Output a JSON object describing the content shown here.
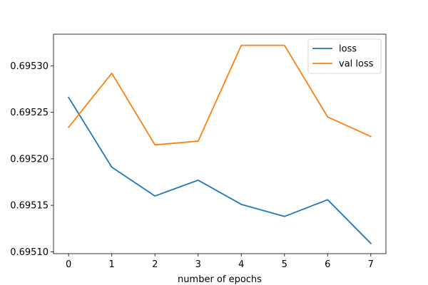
{
  "chart_data": {
    "type": "line",
    "title": "",
    "xlabel": "number of epochs",
    "ylabel": "",
    "x": [
      0,
      1,
      2,
      3,
      4,
      5,
      6,
      7
    ],
    "xlim": [
      -0.35,
      7.35
    ],
    "ylim": [
      0.695098,
      0.695334
    ],
    "xticks": [
      0,
      1,
      2,
      3,
      4,
      5,
      6,
      7
    ],
    "xtick_labels": [
      "0",
      "1",
      "2",
      "3",
      "4",
      "5",
      "6",
      "7"
    ],
    "yticks": [
      0.6951,
      0.69515,
      0.6952,
      0.69525,
      0.6953
    ],
    "ytick_labels": [
      "0.69510",
      "0.69515",
      "0.69520",
      "0.69525",
      "0.69530"
    ],
    "grid": false,
    "legend": "top-right",
    "series": [
      {
        "name": "loss",
        "color": "#1f77b4",
        "values": [
          0.695266,
          0.695191,
          0.69516,
          0.695177,
          0.695151,
          0.695138,
          0.695156,
          0.695109
        ]
      },
      {
        "name": "val loss",
        "color": "#ff7f0e",
        "values": [
          0.695234,
          0.695292,
          0.695215,
          0.695219,
          0.695322,
          0.695322,
          0.695245,
          0.695224
        ]
      }
    ]
  }
}
